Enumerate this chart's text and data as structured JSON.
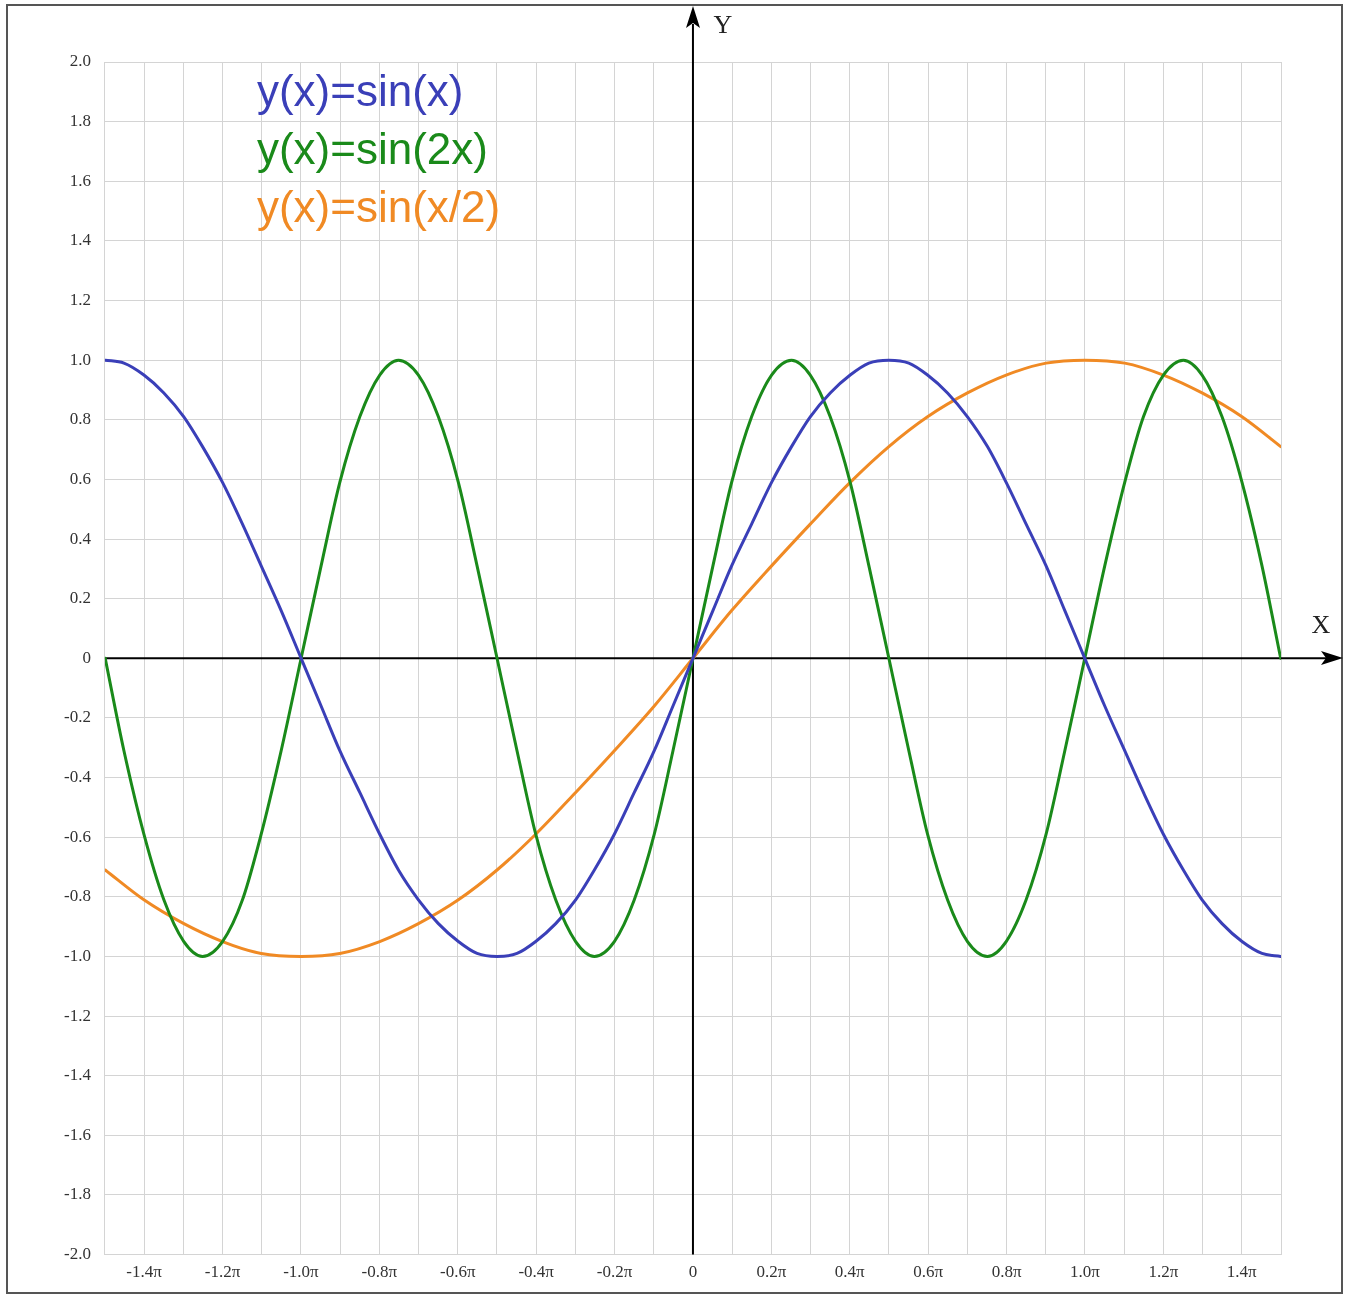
{
  "chart_data": {
    "type": "line",
    "xlabel": "X",
    "ylabel": "Y",
    "legend": "top left",
    "grid": true,
    "marker": "none",
    "x": [
      -4.71,
      -4.56,
      -4.4,
      -4.24,
      -4.08,
      -3.93,
      -3.77,
      -3.61,
      -3.46,
      -3.3,
      -3.14,
      -2.98,
      -2.83,
      -2.67,
      -2.51,
      -2.36,
      -2.2,
      -2.04,
      -1.88,
      -1.73,
      -1.57,
      -1.41,
      -1.26,
      -1.1,
      -0.94,
      -0.79,
      -0.63,
      -0.47,
      -0.31,
      -0.16,
      0,
      0.16,
      0.31,
      0.47,
      0.63,
      0.79,
      0.94,
      1.1,
      1.26,
      1.41,
      1.57,
      1.73,
      1.88,
      2.04,
      2.2,
      2.36,
      2.51,
      2.67,
      2.83,
      2.98,
      3.14,
      3.3,
      3.46,
      3.61,
      3.77,
      3.93,
      4.08,
      4.24,
      4.4,
      4.56,
      4.71
    ],
    "xlim": [
      -4.7124,
      4.7124
    ],
    "ylim": [
      -2,
      2
    ],
    "xticks": [
      {
        "value": -4.7124,
        "label": null
      },
      {
        "value": -4.3982,
        "label": "-1.4π"
      },
      {
        "value": -4.0841,
        "label": null
      },
      {
        "value": -3.7699,
        "label": "-1.2π"
      },
      {
        "value": -3.4558,
        "label": null
      },
      {
        "value": -3.1416,
        "label": "-1.0π"
      },
      {
        "value": -2.8274,
        "label": null
      },
      {
        "value": -2.5133,
        "label": "-0.8π"
      },
      {
        "value": -2.1991,
        "label": null
      },
      {
        "value": -1.885,
        "label": "-0.6π"
      },
      {
        "value": -1.5708,
        "label": null
      },
      {
        "value": -1.2566,
        "label": "-0.4π"
      },
      {
        "value": -0.9425,
        "label": null
      },
      {
        "value": -0.6283,
        "label": "-0.2π"
      },
      {
        "value": -0.3142,
        "label": null
      },
      {
        "value": 0,
        "label": "0"
      },
      {
        "value": 0.3142,
        "label": null
      },
      {
        "value": 0.6283,
        "label": "0.2π"
      },
      {
        "value": 0.9425,
        "label": null
      },
      {
        "value": 1.2566,
        "label": "0.4π"
      },
      {
        "value": 1.5708,
        "label": null
      },
      {
        "value": 1.885,
        "label": "0.6π"
      },
      {
        "value": 2.1991,
        "label": null
      },
      {
        "value": 2.5133,
        "label": "0.8π"
      },
      {
        "value": 2.8274,
        "label": null
      },
      {
        "value": 3.1416,
        "label": "1.0π"
      },
      {
        "value": 3.4558,
        "label": null
      },
      {
        "value": 3.7699,
        "label": "1.2π"
      },
      {
        "value": 4.0841,
        "label": null
      },
      {
        "value": 4.3982,
        "label": "1.4π"
      },
      {
        "value": 4.7124,
        "label": null
      }
    ],
    "yticks": [
      {
        "value": 2,
        "label": "2.0"
      },
      {
        "value": 1.8,
        "label": "1.8"
      },
      {
        "value": 1.6,
        "label": "1.6"
      },
      {
        "value": 1.4,
        "label": "1.4"
      },
      {
        "value": 1.2,
        "label": "1.2"
      },
      {
        "value": 1,
        "label": "1.0"
      },
      {
        "value": 0.8,
        "label": "0.8"
      },
      {
        "value": 0.6,
        "label": "0.6"
      },
      {
        "value": 0.4,
        "label": "0.4"
      },
      {
        "value": 0.2,
        "label": "0.2"
      },
      0,
      {
        "value": -0.2,
        "label": "-0.2"
      },
      {
        "value": -0.4,
        "label": "-0.4"
      },
      {
        "value": -0.6,
        "label": "-0.6"
      },
      {
        "value": -0.8,
        "label": "-0.8"
      },
      {
        "value": -1,
        "label": "-1.0"
      },
      {
        "value": -1.2,
        "label": "-1.2"
      },
      {
        "value": -1.4,
        "label": "-1.4"
      },
      {
        "value": -1.6,
        "label": "-1.6"
      },
      {
        "value": -1.8,
        "label": "-1.8"
      },
      {
        "value": -2,
        "label": "-2.0"
      }
    ],
    "series": [
      {
        "name": "y(x)=sin(x)",
        "color": "#3a3fb8",
        "values": [
          1,
          0.99,
          0.95,
          0.89,
          0.81,
          0.71,
          0.59,
          0.45,
          0.31,
          0.16,
          0,
          -0.16,
          -0.31,
          -0.45,
          -0.59,
          -0.71,
          -0.81,
          -0.89,
          -0.95,
          -0.99,
          -1,
          -0.99,
          -0.95,
          -0.89,
          -0.81,
          -0.71,
          -0.59,
          -0.45,
          -0.31,
          -0.16,
          0,
          0.16,
          0.31,
          0.45,
          0.59,
          0.71,
          0.81,
          0.89,
          0.95,
          0.99,
          1,
          0.99,
          0.95,
          0.89,
          0.81,
          0.71,
          0.59,
          0.45,
          0.31,
          0.16,
          0,
          -0.16,
          -0.31,
          -0.45,
          -0.59,
          -0.71,
          -0.81,
          -0.89,
          -0.95,
          -0.99,
          -1
        ]
      },
      {
        "name": "y(x)=sin(2x)",
        "color": "#1a8a1a",
        "values": [
          0,
          -0.31,
          -0.59,
          -0.81,
          -0.95,
          -1,
          -0.95,
          -0.81,
          -0.59,
          -0.31,
          0,
          0.31,
          0.59,
          0.81,
          0.95,
          1,
          0.95,
          0.81,
          0.59,
          0.31,
          0,
          -0.31,
          -0.59,
          -0.81,
          -0.95,
          -1,
          -0.95,
          -0.81,
          -0.59,
          -0.31,
          0,
          0.31,
          0.59,
          0.81,
          0.95,
          1,
          0.95,
          0.81,
          0.59,
          0.31,
          0,
          -0.31,
          -0.59,
          -0.81,
          -0.95,
          -1,
          -0.95,
          -0.81,
          -0.59,
          -0.31,
          0,
          0.31,
          0.59,
          0.81,
          0.95,
          1,
          0.95,
          0.81,
          0.59,
          0.31,
          0
        ]
      },
      {
        "name": "y(x)=sin(x/2)",
        "color": "#f08a24",
        "x": [
          -4.71,
          -4.4,
          -4.08,
          -3.77,
          -3.46,
          -3.14,
          -2.83,
          -2.51,
          -2.2,
          -1.88,
          -1.57,
          -1.26,
          -0.94,
          -0.63,
          -0.31,
          0,
          0.31,
          0.63,
          0.94,
          1.26,
          1.57,
          1.88,
          2.2,
          2.51,
          2.83,
          3.14,
          3.46,
          3.77,
          4.08,
          4.4,
          4.71
        ],
        "values": [
          -0.71,
          -0.81,
          -0.89,
          -0.95,
          -0.99,
          -1,
          -0.99,
          -0.95,
          -0.89,
          -0.81,
          -0.71,
          -0.59,
          -0.45,
          -0.31,
          -0.16,
          0,
          0.16,
          0.31,
          0.45,
          0.59,
          0.71,
          0.81,
          0.89,
          0.95,
          0.99,
          1,
          0.99,
          0.95,
          0.89,
          0.81,
          0.71
        ]
      }
    ]
  }
}
